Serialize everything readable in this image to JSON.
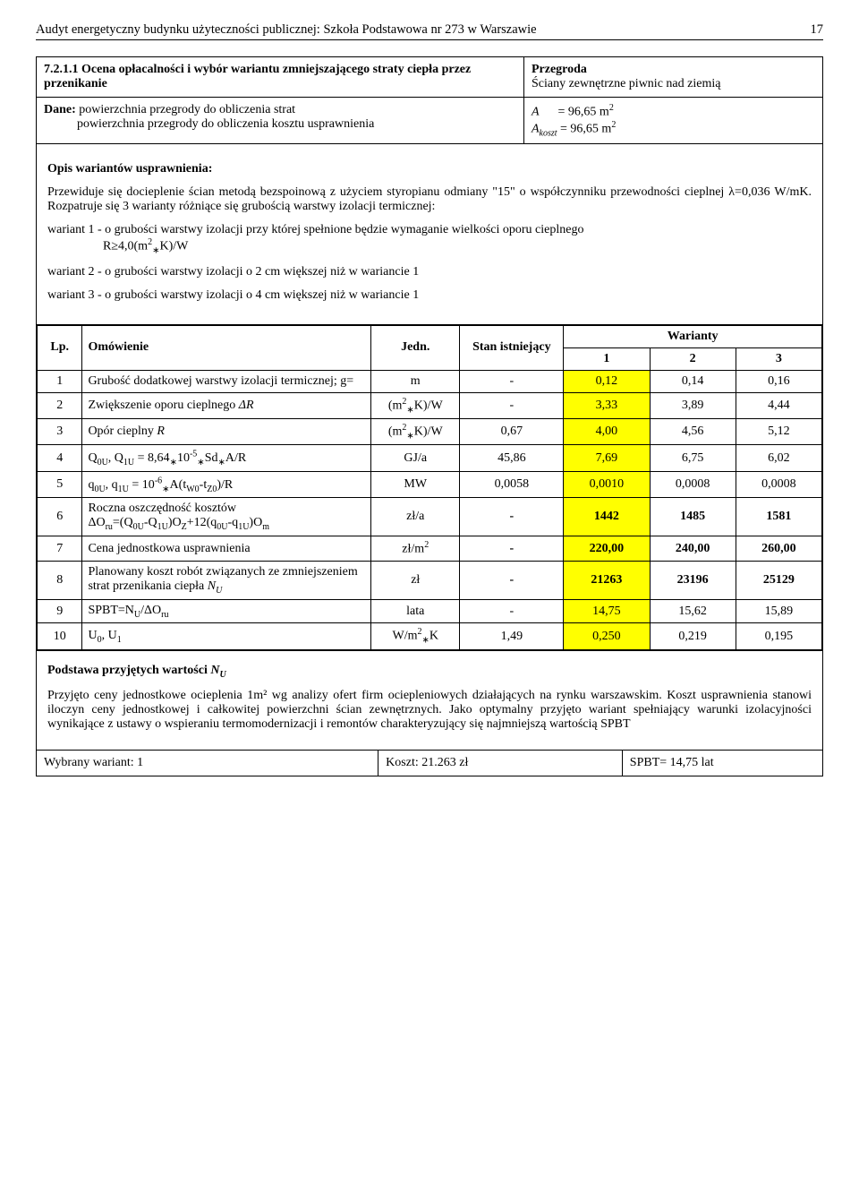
{
  "header": {
    "title": "Audyt energetyczny budynku użyteczności publicznej: Szkoła Podstawowa nr 273 w Warszawie",
    "page": "17"
  },
  "intro": {
    "section_num": "7.2.1.1",
    "section_title": "Ocena opłacalności i wybór wariantu zmniejszającego straty ciepła przez przenikanie",
    "przegroda_label": "Przegroda",
    "przegroda_value": "Ściany zewnętrzne piwnic nad ziemią",
    "dane_label": "Dane:",
    "dane_line1": "powierzchnia przegrody do obliczenia strat",
    "dane_line2": "powierzchnia przegrody do obliczenia kosztu usprawnienia",
    "A_label": "A",
    "A_eq": "= 96,65 m",
    "Akoszt_label": "A",
    "Akoszt_sub": "koszt",
    "Akoszt_eq": "= 96,65 m",
    "m2_sup": "2"
  },
  "opis": {
    "heading": "Opis wariantów usprawnienia:",
    "p1": "Przewiduje się docieplenie ścian metodą bezspoinową z użyciem styropianu odmiany \"15\" o współczynniku przewodności cieplnej λ=0,036 W/mK. Rozpatruje się 3 warianty różniące się grubością warstwy izolacji termicznej:",
    "w1a": "wariant 1 - o grubości warstwy izolacji przy której spełnione będzie wymaganie wielkości oporu cieplnego",
    "w1b": "R≥4,0(m",
    "w1b_tail": "K)/W",
    "w2": "wariant 2 - o grubości warstwy izolacji o 2 cm większej niż w wariancie 1",
    "w3": "wariant 3 - o grubości warstwy izolacji o 4 cm większej niż w wariancie 1"
  },
  "table": {
    "headers": {
      "lp": "Lp.",
      "omowienie": "Omówienie",
      "jedn": "Jedn.",
      "stan": "Stan istniejący",
      "warianty": "Warianty",
      "w1": "1",
      "w2": "2",
      "w3": "3"
    },
    "rows": [
      {
        "lp": "1",
        "desc": "Grubość dodatkowej warstwy izolacji termicznej; g=",
        "jedn": "m",
        "stan": "-",
        "v1": "0,12",
        "v2": "0,14",
        "v3": "0,16",
        "hl": "v1"
      },
      {
        "lp": "2",
        "desc": "Zwiększenie oporu cieplnego ΔR",
        "jedn": "(m²∗K)/W",
        "stan": "-",
        "v1": "3,33",
        "v2": "3,89",
        "v3": "4,44",
        "hl": "v1"
      },
      {
        "lp": "3",
        "desc": "Opór cieplny R",
        "jedn": "(m²∗K)/W",
        "stan": "0,67",
        "v1": "4,00",
        "v2": "4,56",
        "v3": "5,12",
        "hl": "v1"
      },
      {
        "lp": "4",
        "desc": "Q0U, Q1U = 8,64∗10⁻⁵∗Sd∗A/R",
        "jedn": "GJ/a",
        "stan": "45,86",
        "v1": "7,69",
        "v2": "6,75",
        "v3": "6,02",
        "hl": "v1"
      },
      {
        "lp": "5",
        "desc": "q0U, q1U = 10⁻⁶∗A(tW0-tZ0)/R",
        "jedn": "MW",
        "stan": "0,0058",
        "v1": "0,0010",
        "v2": "0,0008",
        "v3": "0,0008",
        "hl": "v1"
      },
      {
        "lp": "6",
        "desc": "Roczna oszczędność kosztów\nΔOru=(Q0U-Q1U)OZ+12(q0U-q1U)Om",
        "jedn": "zł/a",
        "stan": "-",
        "v1": "1442",
        "v2": "1485",
        "v3": "1581",
        "hl": "v1"
      },
      {
        "lp": "7",
        "desc": "Cena jednostkowa usprawnienia",
        "jedn": "zł/m²",
        "stan": "-",
        "v1": "220,00",
        "v2": "240,00",
        "v3": "260,00",
        "hl": "v1"
      },
      {
        "lp": "8",
        "desc": "Planowany koszt robót związanych ze zmniejszeniem strat przenikania ciepła NU",
        "jedn": "zł",
        "stan": "-",
        "v1": "21263",
        "v2": "23196",
        "v3": "25129",
        "hl": "v1"
      },
      {
        "lp": "9",
        "desc": "SPBT=NU/ΔOru",
        "jedn": "lata",
        "stan": "-",
        "v1": "14,75",
        "v2": "15,62",
        "v3": "15,89",
        "hl": "v1"
      },
      {
        "lp": "10",
        "desc": "U0, U1",
        "jedn": "W/m²∗K",
        "stan": "1,49",
        "v1": "0,250",
        "v2": "0,219",
        "v3": "0,195",
        "hl": "v1"
      }
    ]
  },
  "footer": {
    "heading": "Podstawa przyjętych wartości NU",
    "p1": "Przyjęto ceny jednostkowe ocieplenia 1m² wg analizy ofert firm ociepleniowych działających na rynku warszawskim. Koszt usprawnienia stanowi iloczyn ceny jednostkowej i całkowitej powierzchni ścian zewnętrznych. Jako optymalny przyjęto wariant spełniający warunki izolacyjności wynikające z ustawy o wspieraniu termomodernizacji i remontów charakteryzujący się najmniejszą wartością SPBT",
    "wybrany_label": "Wybrany wariant: 1",
    "koszt_label": "Koszt: 21.263 zł",
    "spbt_label": "SPBT=  14,75 lat"
  }
}
